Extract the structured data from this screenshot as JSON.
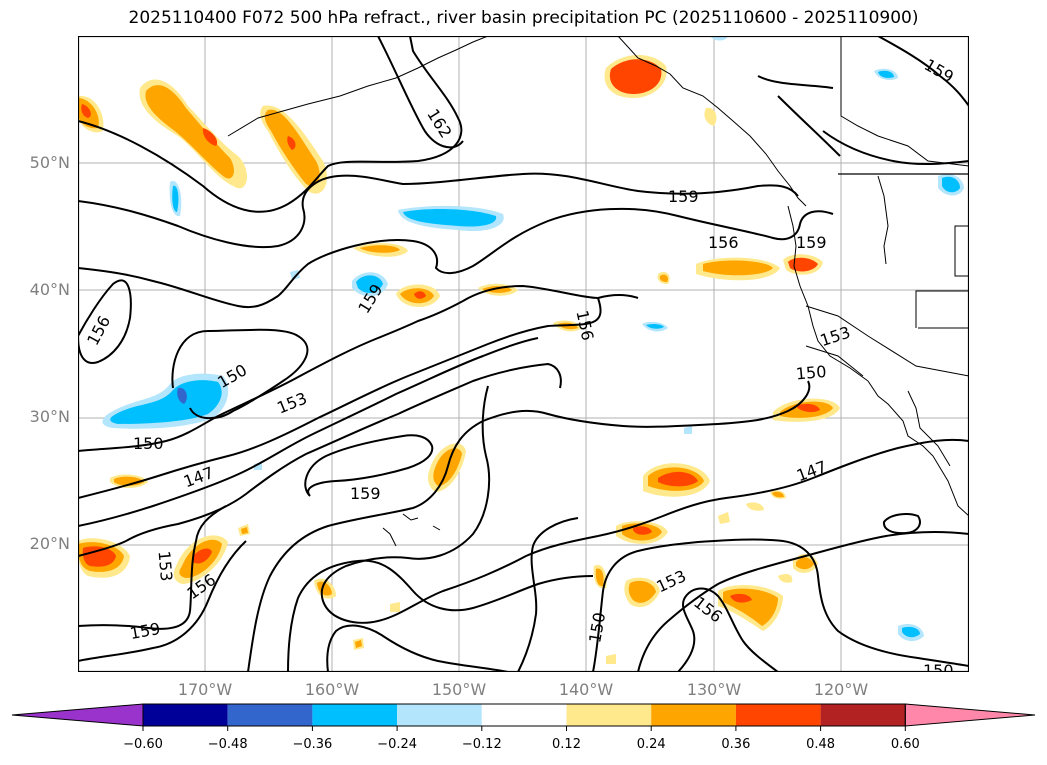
{
  "title": "2025110400 F072 500 hPa refract., river basin precipitation PC (2025110600 - 2025110900)",
  "lat_labels": [
    "50°N",
    "40°N",
    "30°N",
    "20°N"
  ],
  "lon_labels": [
    "170°W",
    "160°W",
    "150°W",
    "140°W",
    "130°W",
    "120°W"
  ],
  "contour_labels": [
    "162",
    "159",
    "159",
    "159",
    "159",
    "159",
    "159",
    "156",
    "156",
    "156",
    "156",
    "156",
    "153",
    "153",
    "153",
    "153",
    "150",
    "150",
    "150",
    "150",
    "150",
    "147",
    "147"
  ],
  "colorbar": {
    "colors": [
      "#9933cc",
      "#000099",
      "#3366cc",
      "#00bfff",
      "#b3e5fc",
      "#ffffff",
      "#ffe98c",
      "#ffa500",
      "#ff4500",
      "#b22222",
      "#ff88aa"
    ],
    "tick_labels": [
      "−0.60",
      "−0.48",
      "−0.36",
      "−0.24",
      "−0.12",
      "0.12",
      "0.24",
      "0.36",
      "0.48",
      "0.60"
    ]
  }
}
